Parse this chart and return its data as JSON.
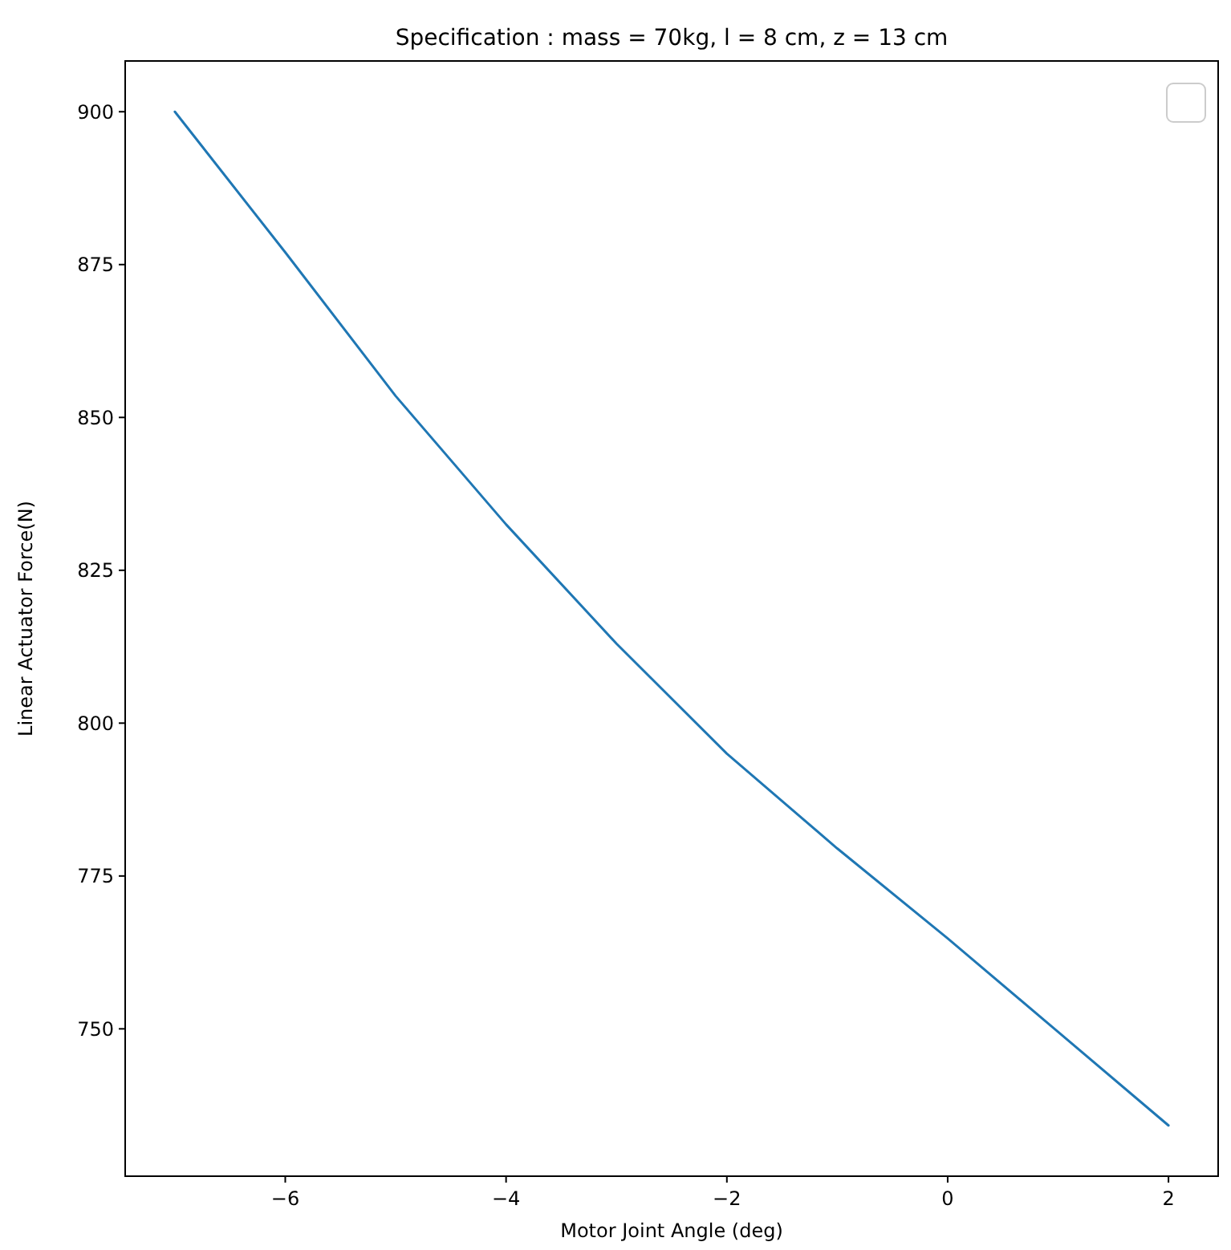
{
  "chart_data": {
    "type": "line",
    "title": "Specification : mass = 70kg, l = 8 cm, z = 13 cm",
    "xlabel": "Motor Joint Angle (deg)",
    "ylabel": "Linear Actuator Force(N)",
    "x": [
      -7,
      -6,
      -5,
      -4,
      -3,
      -2,
      -1,
      0,
      1,
      2
    ],
    "series": [
      {
        "color": "#1f77b4",
        "values": [
          900,
          877,
          853.5,
          832.5,
          813,
          795,
          779.5,
          764.8,
          749.5,
          734.2
        ]
      }
    ],
    "xlim": [
      -7.45,
      2.45
    ],
    "xticks": [
      {
        "value": -6,
        "label": "−6"
      },
      {
        "value": -4,
        "label": "−4"
      },
      {
        "value": -2,
        "label": "−2"
      },
      0,
      2
    ],
    "ylim": [
      725.9,
      908.3
    ],
    "yticks": [
      750,
      775,
      800,
      825,
      850,
      875,
      900
    ],
    "grid": false,
    "marker": "none",
    "line_style": "solid"
  }
}
